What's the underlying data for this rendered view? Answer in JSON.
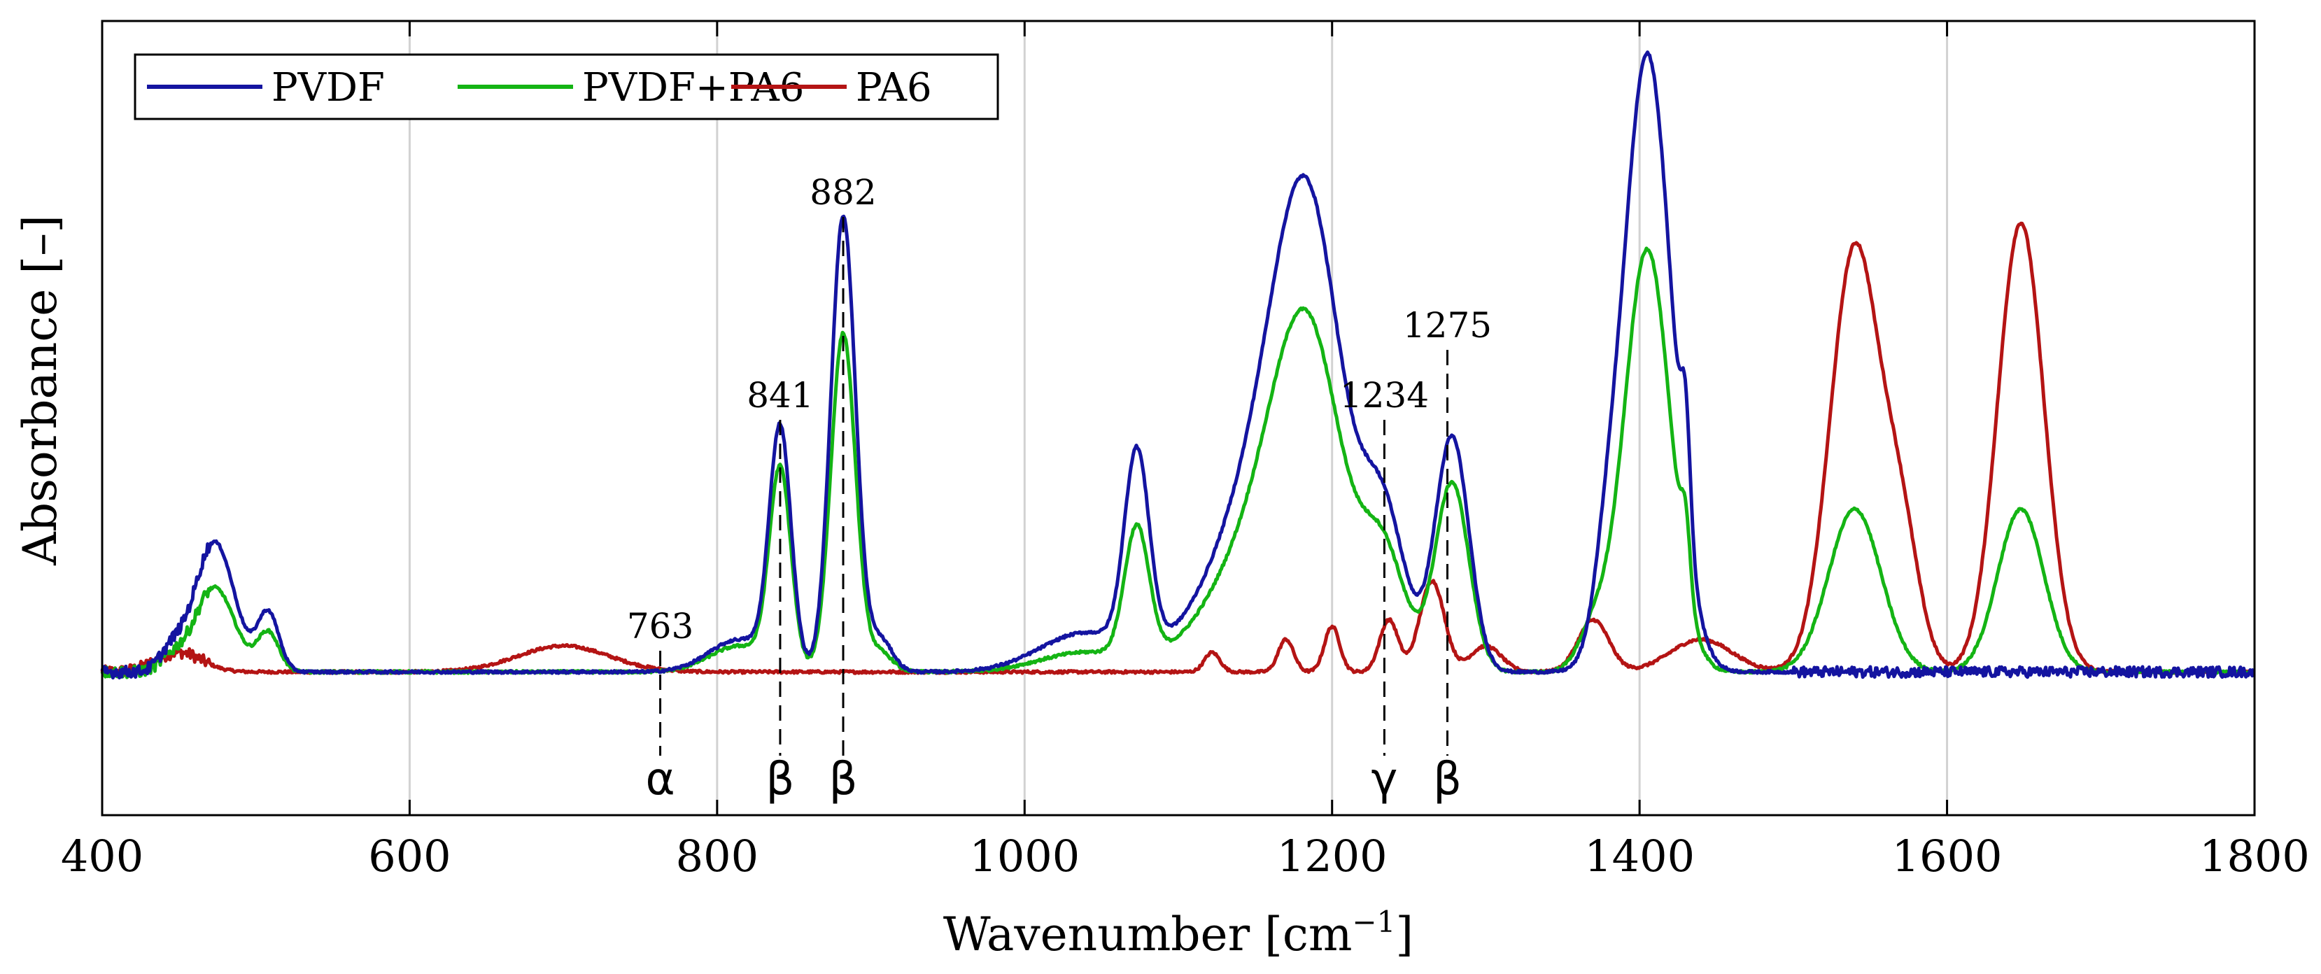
{
  "chart_data": {
    "type": "line",
    "title": "",
    "xlabel": "Wavenumber [cm",
    "xlabel_superscript": "−1",
    "xlabel_close": "]",
    "ylabel": "Absorbance [–]",
    "xlim": [
      400,
      1800
    ],
    "ylim": [
      -0.22,
      1.0
    ],
    "xticks": [
      400,
      600,
      800,
      1000,
      1200,
      1400,
      1600,
      1800
    ],
    "xtick_labels": [
      "400",
      "600",
      "800",
      "1000",
      "1200",
      "1400",
      "1600",
      "1800"
    ],
    "grid": "vertical lines at x ticks",
    "legend": {
      "placement": "top-left",
      "entries": [
        {
          "name": "PVDF",
          "color": "#1414a0"
        },
        {
          "name": "PVDF+PA6",
          "color": "#14b414"
        },
        {
          "name": "PA6",
          "color": "#b41414"
        }
      ]
    },
    "series": [
      {
        "name": "PVDF",
        "color": "#1414a0",
        "baseline": 0.0,
        "noise_above": 1500,
        "peaks": [
          {
            "x": 445,
            "h": 0.03,
            "w": 8
          },
          {
            "x": 473,
            "h": 0.2,
            "w": 13
          },
          {
            "x": 508,
            "h": 0.09,
            "w": 7
          },
          {
            "x": 815,
            "h": 0.05,
            "w": 20
          },
          {
            "x": 841,
            "h": 0.36,
            "w": 7
          },
          {
            "x": 882,
            "h": 0.7,
            "w": 8
          },
          {
            "x": 906,
            "h": 0.05,
            "w": 8
          },
          {
            "x": 1040,
            "h": 0.06,
            "w": 30
          },
          {
            "x": 1073,
            "h": 0.3,
            "w": 8
          },
          {
            "x": 1160,
            "h": 0.3,
            "w": 35
          },
          {
            "x": 1185,
            "h": 0.52,
            "w": 22
          },
          {
            "x": 1234,
            "h": 0.21,
            "w": 14
          },
          {
            "x": 1278,
            "h": 0.36,
            "w": 11
          },
          {
            "x": 1405,
            "h": 0.95,
            "w": 16
          },
          {
            "x": 1378,
            "h": 0.08,
            "w": 8
          },
          {
            "x": 1430,
            "h": 0.16,
            "w": 3
          }
        ]
      },
      {
        "name": "PVDF+PA6",
        "color": "#14b414",
        "baseline": 0.0,
        "peaks": [
          {
            "x": 445,
            "h": 0.02,
            "w": 8
          },
          {
            "x": 473,
            "h": 0.13,
            "w": 13
          },
          {
            "x": 508,
            "h": 0.06,
            "w": 7
          },
          {
            "x": 815,
            "h": 0.04,
            "w": 20
          },
          {
            "x": 841,
            "h": 0.3,
            "w": 7
          },
          {
            "x": 882,
            "h": 0.52,
            "w": 8
          },
          {
            "x": 906,
            "h": 0.03,
            "w": 8
          },
          {
            "x": 1040,
            "h": 0.03,
            "w": 30
          },
          {
            "x": 1073,
            "h": 0.2,
            "w": 8
          },
          {
            "x": 1160,
            "h": 0.22,
            "w": 35
          },
          {
            "x": 1185,
            "h": 0.38,
            "w": 22
          },
          {
            "x": 1234,
            "h": 0.16,
            "w": 14
          },
          {
            "x": 1278,
            "h": 0.29,
            "w": 11
          },
          {
            "x": 1405,
            "h": 0.65,
            "w": 15
          },
          {
            "x": 1370,
            "h": 0.06,
            "w": 10
          },
          {
            "x": 1430,
            "h": 0.1,
            "w": 3
          },
          {
            "x": 1540,
            "h": 0.25,
            "w": 17
          },
          {
            "x": 1648,
            "h": 0.25,
            "w": 15
          }
        ]
      },
      {
        "name": "PA6",
        "color": "#b41414",
        "baseline": 0.0,
        "peaks": [
          {
            "x": 450,
            "h": 0.03,
            "w": 15
          },
          {
            "x": 700,
            "h": 0.04,
            "w": 30
          },
          {
            "x": 1122,
            "h": 0.03,
            "w": 5
          },
          {
            "x": 1170,
            "h": 0.05,
            "w": 5
          },
          {
            "x": 1200,
            "h": 0.07,
            "w": 5
          },
          {
            "x": 1237,
            "h": 0.08,
            "w": 6
          },
          {
            "x": 1265,
            "h": 0.14,
            "w": 8
          },
          {
            "x": 1300,
            "h": 0.04,
            "w": 10
          },
          {
            "x": 1370,
            "h": 0.08,
            "w": 10
          },
          {
            "x": 1440,
            "h": 0.05,
            "w": 20
          },
          {
            "x": 1540,
            "h": 0.65,
            "w": 16
          },
          {
            "x": 1570,
            "h": 0.2,
            "w": 12
          },
          {
            "x": 1648,
            "h": 0.69,
            "w": 15
          }
        ]
      }
    ],
    "annotations": [
      {
        "x": 763,
        "number": "763",
        "symbol": "α"
      },
      {
        "x": 841,
        "number": "841",
        "symbol": "β"
      },
      {
        "x": 882,
        "number": "882",
        "symbol": "β"
      },
      {
        "x": 1234,
        "number": "1234",
        "symbol": "γ"
      },
      {
        "x": 1275,
        "number": "1275",
        "symbol": "β"
      }
    ]
  }
}
